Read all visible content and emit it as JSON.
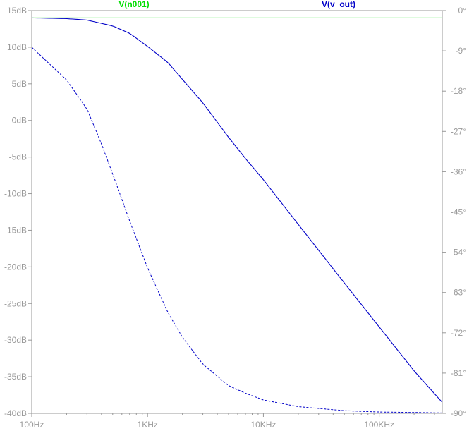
{
  "chart_data": {
    "type": "line",
    "x_scale": "log",
    "x_range_hz": [
      100,
      350000
    ],
    "y_left": {
      "unit": "dB",
      "range": [
        -40,
        15
      ],
      "ticks": [
        "15dB",
        "10dB",
        "5dB",
        "0dB",
        "-5dB",
        "-10dB",
        "-15dB",
        "-20dB",
        "-25dB",
        "-30dB",
        "-35dB",
        "-40dB"
      ]
    },
    "y_right": {
      "unit": "deg",
      "range": [
        -90,
        0
      ],
      "ticks": [
        "0°",
        "-9°",
        "-18°",
        "-27°",
        "-36°",
        "-45°",
        "-54°",
        "-63°",
        "-72°",
        "-81°",
        "-90°"
      ]
    },
    "x_ticks": [
      {
        "value": 100,
        "label": "100Hz"
      },
      {
        "value": 1000,
        "label": "1KHz"
      },
      {
        "value": 10000,
        "label": "10KHz"
      },
      {
        "value": 100000,
        "label": "100KHz"
      }
    ],
    "grid": false,
    "series": [
      {
        "name": "V(n001)",
        "color": "#00dd00",
        "magnitude_db": {
          "x": [
            100,
            350000
          ],
          "y": [
            14,
            14
          ]
        },
        "phase_deg": {
          "x": [
            100,
            350000
          ],
          "y": [
            0,
            0
          ]
        }
      },
      {
        "name": "V(v_out)",
        "color": "#0000c8",
        "magnitude_db": {
          "x": [
            100,
            200,
            300,
            500,
            700,
            1000,
            1500,
            2000,
            3000,
            5000,
            7000,
            10000,
            20000,
            50000,
            100000,
            200000,
            350000
          ],
          "y": [
            14.0,
            13.9,
            13.7,
            12.9,
            11.9,
            10.1,
            7.9,
            5.6,
            2.4,
            -2.3,
            -5.2,
            -8.1,
            -14.2,
            -22.2,
            -28.2,
            -34.2,
            -38.5
          ]
        },
        "phase_deg": {
          "x": [
            100,
            200,
            300,
            400,
            500,
            700,
            1000,
            1500,
            2000,
            3000,
            5000,
            7000,
            10000,
            20000,
            50000,
            100000,
            200000,
            350000
          ],
          "y": [
            -8.2,
            -15.5,
            -22.0,
            -29.8,
            -36.5,
            -47.0,
            -57.5,
            -67.5,
            -73.0,
            -79.0,
            -83.8,
            -85.5,
            -87.0,
            -88.5,
            -89.4,
            -89.7,
            -89.8,
            -89.9
          ]
        }
      }
    ]
  }
}
